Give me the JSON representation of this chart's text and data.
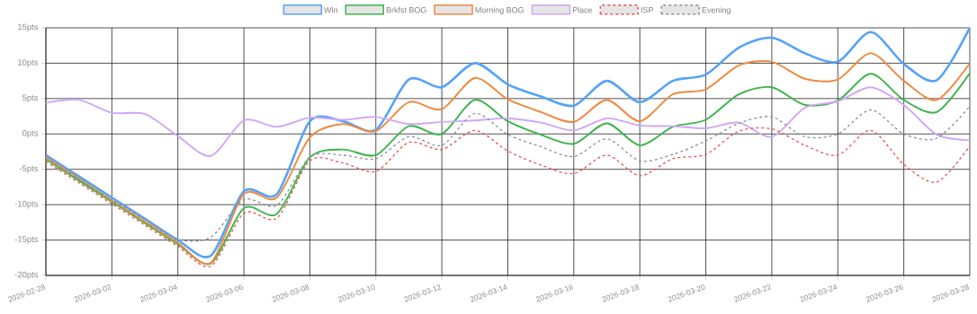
{
  "chart_data": {
    "type": "line",
    "x": [
      "2026-02-28",
      "2026-03-01",
      "2026-03-02",
      "2026-03-03",
      "2026-03-04",
      "2026-03-05",
      "2026-03-06",
      "2026-03-07",
      "2026-03-08",
      "2026-03-09",
      "2026-03-10",
      "2026-03-11",
      "2026-03-12",
      "2026-03-13",
      "2026-03-14",
      "2026-03-15",
      "2026-03-16",
      "2026-03-17",
      "2026-03-18",
      "2026-03-19",
      "2026-03-20",
      "2026-03-21",
      "2026-03-22",
      "2026-03-23",
      "2026-03-24",
      "2026-03-25",
      "2026-03-26",
      "2026-03-27",
      "2026-03-28"
    ],
    "series": [
      {
        "name": "Win",
        "color": "#55a3f7",
        "values": [
          -3,
          -6,
          -9,
          -12,
          -15,
          -17.2,
          -8.1,
          -8.5,
          1.8,
          1.8,
          0.6,
          7.7,
          6.6,
          10,
          7,
          5.3,
          4,
          7.5,
          4.5,
          7.5,
          8.4,
          12.2,
          13.6,
          11.4,
          10.2,
          14.4,
          9.9,
          7.6,
          15
        ]
      },
      {
        "name": "Brkfst BOG",
        "color": "#3cb44b",
        "values": [
          -3.6,
          -6.6,
          -9.6,
          -12.6,
          -15.6,
          -18.3,
          -10.5,
          -11.3,
          -3.3,
          -2.2,
          -3,
          1.1,
          0,
          4.8,
          1.8,
          -0.1,
          -1.4,
          1.5,
          -1.6,
          1,
          2,
          5.6,
          6.6,
          4.1,
          4.7,
          8.5,
          4.8,
          3.1,
          8.6
        ]
      },
      {
        "name": "Morning BOG",
        "color": "#f0883e",
        "values": [
          -3.3,
          -6.3,
          -9.4,
          -12.4,
          -15.4,
          -18.2,
          -8.5,
          -9,
          -0.5,
          1.4,
          0.4,
          4.5,
          3.5,
          7.9,
          4.9,
          3.1,
          1.7,
          4.8,
          1.8,
          5.6,
          6.3,
          9.7,
          10.2,
          7.8,
          7.7,
          11.4,
          7.5,
          4.8,
          10
        ]
      },
      {
        "name": "Place",
        "color": "#cfa8f5",
        "values": [
          4.4,
          4.8,
          3,
          2.8,
          -0.3,
          -3.1,
          1.9,
          1,
          2.3,
          2,
          2.4,
          1.4,
          1.7,
          1.9,
          2.2,
          1.6,
          0.5,
          2.2,
          1.2,
          1.1,
          0.8,
          1.6,
          -0.4,
          3.7,
          4.6,
          6.6,
          4.1,
          -0.1,
          -0.9
        ]
      },
      {
        "name": "ISP",
        "color": "#f05050",
        "line_style": "dashed",
        "values": [
          -3.9,
          -6.9,
          -9.9,
          -12.9,
          -15.9,
          -18.7,
          -11.2,
          -11.9,
          -3.8,
          -4.1,
          -5.3,
          -1.2,
          -2.2,
          0.5,
          -2.4,
          -4.4,
          -5.6,
          -3,
          -5.9,
          -3.5,
          -2.9,
          0.4,
          0.7,
          -1.6,
          -3,
          0.5,
          -4.3,
          -6.8,
          -1.7
        ]
      },
      {
        "name": "Evening",
        "color": "#8a8f99",
        "line_style": "dashed",
        "values": [
          -3.5,
          -6.4,
          -9.3,
          -12.1,
          -14.9,
          -14.6,
          -9.3,
          -10.1,
          -3.3,
          -3,
          -3.5,
          -0.4,
          -1.6,
          2.9,
          -0.1,
          -1.8,
          -3.2,
          -0.7,
          -3.8,
          -2.9,
          -1,
          1.5,
          2.4,
          -0.4,
          0,
          3.4,
          0,
          -0.6,
          3.9
        ]
      }
    ],
    "xlim": [
      "2026-02-28",
      "2026-03-28"
    ],
    "xticks": [
      "2026-02-28",
      "2026-03-02",
      "2026-03-04",
      "2026-03-06",
      "2026-03-08",
      "2026-03-10",
      "2026-03-12",
      "2026-03-14",
      "2026-03-16",
      "2026-03-18",
      "2026-03-20",
      "2026-03-22",
      "2026-03-24",
      "2026-03-26",
      "2026-03-28"
    ],
    "ylim": [
      -20,
      15
    ],
    "yticks": [
      {
        "value": -20,
        "label": "-20pts"
      },
      {
        "value": -15,
        "label": "-15pts"
      },
      {
        "value": -10,
        "label": "-10pts"
      },
      {
        "value": -5,
        "label": "-5pts"
      },
      {
        "value": 0,
        "label": "0pts"
      },
      {
        "value": 5,
        "label": "5pts"
      },
      {
        "value": 10,
        "label": "10pts"
      },
      {
        "value": 15,
        "label": "15pts"
      }
    ],
    "grid": true,
    "legend": "top",
    "marker": "none",
    "line_style": "solid"
  }
}
